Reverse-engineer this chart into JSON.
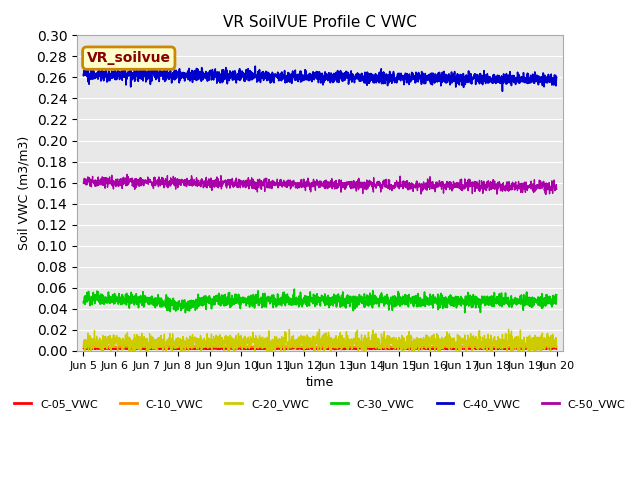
{
  "title": "VR SoilVUE Profile C VWC",
  "xlabel": "time",
  "ylabel": "Soil VWC (m3/m3)",
  "ylim": [
    0.0,
    0.3
  ],
  "yticks": [
    0.0,
    0.02,
    0.04,
    0.06,
    0.08,
    0.1,
    0.12,
    0.14,
    0.16,
    0.18,
    0.2,
    0.22,
    0.24,
    0.26,
    0.28,
    0.3
  ],
  "xlim_days": [
    4.8,
    20.2
  ],
  "xtick_positions": [
    5,
    6,
    7,
    8,
    9,
    10,
    11,
    12,
    13,
    14,
    15,
    16,
    17,
    18,
    19,
    20
  ],
  "xtick_labels": [
    "Jun 5",
    "Jun 6",
    "Jun 7",
    "Jun 8",
    "Jun 9",
    "Jun 10",
    "Jun 11",
    "Jun 12",
    "Jun 13",
    "Jun 14",
    "Jun 15",
    "Jun 16",
    "Jun 17",
    "Jun 18",
    "Jun 19",
    "Jun 20"
  ],
  "series": {
    "C-05_VWC": {
      "mean": 0.002,
      "noise": 0.001,
      "color": "#ff0000",
      "linewidth": 1.0
    },
    "C-10_VWC": {
      "mean": 0.004,
      "noise": 0.001,
      "color": "#ff8800",
      "linewidth": 1.0
    },
    "C-20_VWC": {
      "mean": 0.008,
      "noise": 0.004,
      "color": "#cccc00",
      "linewidth": 1.0
    },
    "C-30_VWC": {
      "mean": 0.048,
      "noise": 0.006,
      "color": "#00cc00",
      "linewidth": 1.2
    },
    "C-40_VWC": {
      "mean": 0.26,
      "noise": 0.006,
      "color": "#0000cc",
      "linewidth": 1.2
    },
    "C-50_VWC": {
      "mean": 0.158,
      "noise": 0.005,
      "color": "#aa00aa",
      "linewidth": 1.0
    }
  },
  "n_points": 2000,
  "bg_color": "#e8e8e8",
  "grid_color": "#ffffff",
  "legend_box_text": "VR_soilvue",
  "legend_box_facecolor": "#ffffcc",
  "legend_box_edgecolor": "#cc8800",
  "legend_box_textcolor": "#880000"
}
